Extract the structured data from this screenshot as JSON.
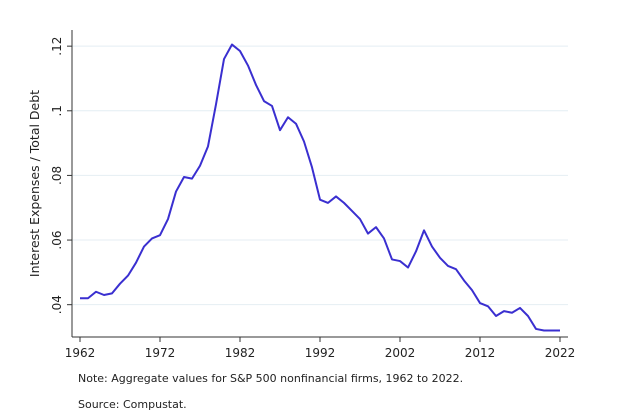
{
  "chart_data": {
    "type": "line",
    "title": "",
    "xlabel": "",
    "ylabel": "Interest Expenses / Total Debt",
    "xlim": [
      1961,
      2023
    ],
    "ylim": [
      0.03,
      0.125
    ],
    "x_ticks": [
      1962,
      1972,
      1982,
      1992,
      2002,
      2012,
      2022
    ],
    "x_tick_labels": [
      "1962",
      "1972",
      "1982",
      "1992",
      "2002",
      "2012",
      "2022"
    ],
    "y_ticks": [
      0.04,
      0.06,
      0.08,
      0.1,
      0.12
    ],
    "y_tick_labels": [
      ".04",
      ".06",
      ".08",
      ".1",
      ".12"
    ],
    "grid": true,
    "line_color": "#3a2fd0",
    "grid_color": "#e4eef3",
    "series": [
      {
        "x": [
          1962,
          1963,
          1964,
          1965,
          1966,
          1967,
          1968,
          1969,
          1970,
          1971,
          1972,
          1973,
          1974,
          1975,
          1976,
          1977,
          1978,
          1979,
          1980,
          1981,
          1982,
          1983,
          1984,
          1985,
          1986,
          1987,
          1988,
          1989,
          1990,
          1991,
          1992,
          1993,
          1994,
          1995,
          1996,
          1997,
          1998,
          1999,
          2000,
          2001,
          2002,
          2003,
          2004,
          2005,
          2006,
          2007,
          2008,
          2009,
          2010,
          2011,
          2012,
          2013,
          2014,
          2015,
          2016,
          2017,
          2018,
          2019,
          2020,
          2021,
          2022
        ],
        "values": [
          0.042,
          0.042,
          0.044,
          0.043,
          0.0435,
          0.0465,
          0.049,
          0.053,
          0.058,
          0.0605,
          0.0615,
          0.0665,
          0.075,
          0.0795,
          0.079,
          0.083,
          0.089,
          0.102,
          0.116,
          0.1205,
          0.1185,
          0.114,
          0.108,
          0.103,
          0.1015,
          0.094,
          0.098,
          0.096,
          0.0905,
          0.0825,
          0.0725,
          0.0715,
          0.0735,
          0.0715,
          0.069,
          0.0665,
          0.062,
          0.064,
          0.0605,
          0.054,
          0.0535,
          0.0515,
          0.0565,
          0.063,
          0.058,
          0.0545,
          0.052,
          0.051,
          0.0475,
          0.0445,
          0.0405,
          0.0395,
          0.0365,
          0.038,
          0.0375,
          0.039,
          0.0365,
          0.0325,
          0.032,
          0.032,
          0.032
        ]
      }
    ]
  },
  "note": "Note: Aggregate values for S&P 500 nonfinancial firms, 1962 to 2022.",
  "source": "Source: Compustat."
}
